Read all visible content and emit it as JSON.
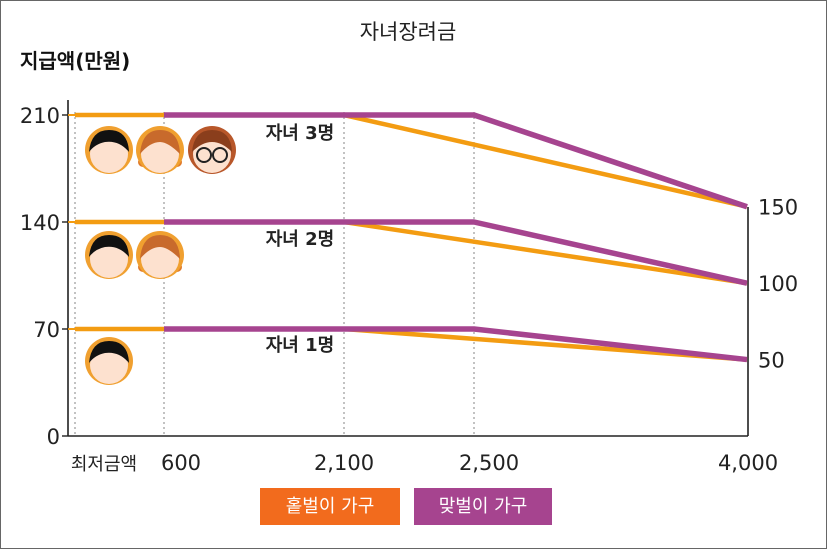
{
  "chart_data": {
    "type": "line",
    "title": "자녀장려금",
    "ylabel": "지급액(만원)",
    "xlabel": "",
    "x_tick_labels": [
      "최저금액",
      "600",
      "2,100",
      "2,500",
      "4,000"
    ],
    "x_ticks": [
      0,
      600,
      2100,
      2500,
      4000
    ],
    "y_ticks": [
      0,
      70,
      140,
      210
    ],
    "y_tick_labels": [
      "0",
      "70",
      "140",
      "210"
    ],
    "right_labels": [
      {
        "value": 150,
        "label": "150"
      },
      {
        "value": 100,
        "label": "100"
      },
      {
        "value": 50,
        "label": "50"
      }
    ],
    "ylim": [
      0,
      210
    ],
    "groups": [
      {
        "label": "자녀 3명",
        "children": 3,
        "icons": [
          "boy",
          "girl",
          "glasses"
        ]
      },
      {
        "label": "자녀 2명",
        "children": 2,
        "icons": [
          "boy",
          "girl"
        ]
      },
      {
        "label": "자녀 1명",
        "children": 1,
        "icons": [
          "boy"
        ]
      }
    ],
    "series": [
      {
        "name": "홑벌이 가구",
        "color": "#f39c12",
        "group": 0,
        "x": [
          0,
          2100,
          4000
        ],
        "y": [
          210,
          210,
          150
        ]
      },
      {
        "name": "맞벌이 가구",
        "color": "#a6448f",
        "group": 0,
        "x": [
          600,
          2500,
          4000
        ],
        "y": [
          210,
          210,
          150
        ]
      },
      {
        "name": "홑벌이 가구",
        "color": "#f39c12",
        "group": 1,
        "x": [
          0,
          2100,
          4000
        ],
        "y": [
          140,
          140,
          100
        ]
      },
      {
        "name": "맞벌이 가구",
        "color": "#a6448f",
        "group": 1,
        "x": [
          600,
          2500,
          4000
        ],
        "y": [
          140,
          140,
          100
        ]
      },
      {
        "name": "홑벌이 가구",
        "color": "#f39c12",
        "group": 2,
        "x": [
          0,
          2100,
          4000
        ],
        "y": [
          70,
          70,
          50
        ]
      },
      {
        "name": "맞벌이 가구",
        "color": "#a6448f",
        "group": 2,
        "x": [
          600,
          2500,
          4000
        ],
        "y": [
          70,
          70,
          50
        ]
      }
    ],
    "legend": [
      {
        "label": "홑벌이 가구",
        "color": "#f26b1d"
      },
      {
        "label": "맞벌이 가구",
        "color": "#a6448f"
      }
    ]
  }
}
